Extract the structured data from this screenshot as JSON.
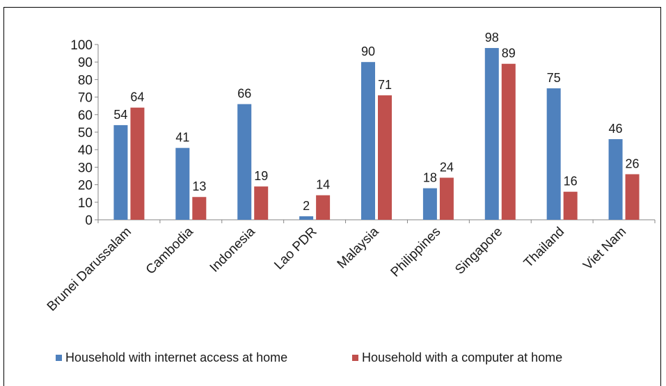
{
  "chart_data": {
    "type": "bar",
    "title": "",
    "xlabel": "",
    "ylabel": "",
    "categories": [
      "Brunei Darussalam",
      "Cambodia",
      "Indonesia",
      "Lao PDR",
      "Malaysia",
      "Philippines",
      "Singapore",
      "Thailand",
      "Viet Nam"
    ],
    "series": [
      {
        "name": "Household with internet access at home",
        "color": "#4f81bd",
        "values": [
          54,
          41,
          66,
          2,
          90,
          18,
          98,
          75,
          46
        ]
      },
      {
        "name": "Household with a computer at home",
        "color": "#c0504d",
        "values": [
          64,
          13,
          19,
          14,
          71,
          24,
          89,
          16,
          26
        ]
      }
    ],
    "ylim": [
      0,
      100
    ],
    "yticks": [
      0,
      10,
      20,
      30,
      40,
      50,
      60,
      70,
      80,
      90,
      100
    ],
    "grid": false,
    "data_labels": true,
    "legend_position": "bottom"
  }
}
